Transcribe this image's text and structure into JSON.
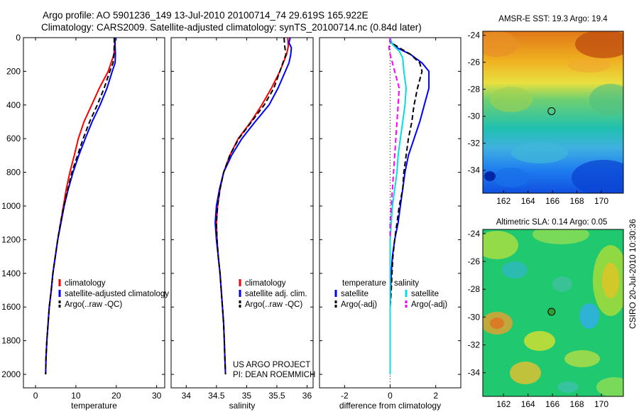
{
  "figure": {
    "title_line1": "Argo profile: AO 5901236_149 13-Jul-2010 20100714_74 29.619S 165.922E",
    "title_line2": "Climatology: CARS2009. Satellite-adjusted climatology: synTS_20100714.nc (0.84d later)",
    "credit_line1": "US ARGO PROJECT",
    "credit_line2": "PI: DEAN ROEMMICH",
    "side_label": "CSIRO 20-Jul-2010 10:30:36"
  },
  "chart_data": [
    {
      "id": "temperature",
      "type": "line",
      "xlabel": "temperature",
      "xlim": [
        -3,
        32
      ],
      "ylim": [
        2080,
        0
      ],
      "xticks": [
        0,
        10,
        20,
        30
      ],
      "yticks": [
        0,
        200,
        400,
        600,
        800,
        1000,
        1200,
        1400,
        1600,
        1800,
        2000
      ],
      "legend": {
        "position": "bottom-right",
        "entries": [
          "climatology",
          "satellite-adjusted climatology",
          "Argo(..raw -QC)"
        ]
      },
      "series": [
        {
          "name": "climatology",
          "color": "#ff0000",
          "style": "solid",
          "points": [
            [
              19.6,
              0
            ],
            [
              19.6,
              50
            ],
            [
              19.4,
              100
            ],
            [
              18.0,
              200
            ],
            [
              15.8,
              300
            ],
            [
              13.9,
              400
            ],
            [
              12.0,
              500
            ],
            [
              10.6,
              600
            ],
            [
              9.6,
              700
            ],
            [
              8.5,
              800
            ],
            [
              7.6,
              900
            ],
            [
              6.9,
              1000
            ],
            [
              6.2,
              1100
            ],
            [
              5.5,
              1200
            ],
            [
              4.9,
              1300
            ],
            [
              4.3,
              1400
            ],
            [
              3.9,
              1500
            ],
            [
              3.4,
              1600
            ],
            [
              3.1,
              1700
            ],
            [
              2.8,
              1800
            ],
            [
              2.6,
              1900
            ],
            [
              2.5,
              2000
            ]
          ]
        },
        {
          "name": "satellite-adjusted climatology",
          "color": "#0000ff",
          "style": "solid",
          "points": [
            [
              19.7,
              0
            ],
            [
              19.7,
              50
            ],
            [
              19.8,
              100
            ],
            [
              19.7,
              150
            ],
            [
              19.0,
              200
            ],
            [
              17.7,
              300
            ],
            [
              16.0,
              400
            ],
            [
              14.0,
              500
            ],
            [
              12.3,
              600
            ],
            [
              10.7,
              700
            ],
            [
              9.3,
              800
            ],
            [
              8.1,
              900
            ],
            [
              7.1,
              1000
            ],
            [
              6.3,
              1100
            ],
            [
              5.5,
              1200
            ],
            [
              4.9,
              1300
            ],
            [
              4.3,
              1400
            ],
            [
              3.9,
              1500
            ],
            [
              3.4,
              1600
            ],
            [
              3.1,
              1700
            ],
            [
              2.8,
              1800
            ],
            [
              2.6,
              1900
            ],
            [
              2.5,
              2000
            ]
          ]
        },
        {
          "name": "Argo(..raw -QC)",
          "color": "#000000",
          "style": "dashed",
          "points": [
            [
              19.5,
              0
            ],
            [
              19.5,
              50
            ],
            [
              19.4,
              100
            ],
            [
              19.2,
              150
            ],
            [
              18.4,
              200
            ],
            [
              17.0,
              300
            ],
            [
              15.3,
              400
            ],
            [
              13.4,
              500
            ],
            [
              11.8,
              600
            ],
            [
              10.4,
              700
            ],
            [
              9.0,
              800
            ],
            [
              8.0,
              900
            ],
            [
              7.0,
              1000
            ],
            [
              6.2,
              1100
            ],
            [
              5.5,
              1200
            ],
            [
              4.9,
              1300
            ],
            [
              4.3,
              1400
            ],
            [
              3.9,
              1500
            ],
            [
              3.4,
              1600
            ],
            [
              3.1,
              1700
            ],
            [
              2.8,
              1800
            ],
            [
              2.6,
              1900
            ],
            [
              2.5,
              2000
            ]
          ]
        }
      ]
    },
    {
      "id": "salinity",
      "type": "line",
      "xlabel": "salinity",
      "xlim": [
        33.75,
        36.1
      ],
      "ylim": [
        2080,
        0
      ],
      "xticks": [
        34,
        34.5,
        35,
        35.5,
        36
      ],
      "legend": {
        "position": "bottom-right",
        "entries": [
          "climatology",
          "satellite adj. clim.",
          "Argo(..raw -QC)"
        ]
      },
      "series": [
        {
          "name": "climatology",
          "color": "#ff0000",
          "style": "solid",
          "points": [
            [
              35.68,
              0
            ],
            [
              35.69,
              50
            ],
            [
              35.66,
              100
            ],
            [
              35.55,
              200
            ],
            [
              35.41,
              300
            ],
            [
              35.25,
              400
            ],
            [
              35.07,
              500
            ],
            [
              34.86,
              600
            ],
            [
              34.72,
              700
            ],
            [
              34.62,
              800
            ],
            [
              34.56,
              900
            ],
            [
              34.52,
              1000
            ],
            [
              34.5,
              1100
            ],
            [
              34.51,
              1200
            ],
            [
              34.53,
              1300
            ],
            [
              34.56,
              1400
            ],
            [
              34.58,
              1500
            ],
            [
              34.6,
              1600
            ],
            [
              34.62,
              1700
            ],
            [
              34.63,
              1800
            ],
            [
              34.64,
              1900
            ],
            [
              34.65,
              2000
            ]
          ]
        },
        {
          "name": "satellite adj. clim.",
          "color": "#0000ff",
          "style": "solid",
          "points": [
            [
              35.72,
              0
            ],
            [
              35.7,
              30
            ],
            [
              35.74,
              60
            ],
            [
              35.73,
              100
            ],
            [
              35.7,
              150
            ],
            [
              35.64,
              200
            ],
            [
              35.52,
              300
            ],
            [
              35.37,
              400
            ],
            [
              35.14,
              500
            ],
            [
              34.92,
              600
            ],
            [
              34.75,
              700
            ],
            [
              34.62,
              800
            ],
            [
              34.55,
              900
            ],
            [
              34.5,
              1000
            ],
            [
              34.48,
              1100
            ],
            [
              34.5,
              1200
            ],
            [
              34.53,
              1300
            ],
            [
              34.56,
              1400
            ],
            [
              34.58,
              1500
            ],
            [
              34.6,
              1600
            ],
            [
              34.62,
              1700
            ],
            [
              34.63,
              1800
            ],
            [
              34.64,
              1900
            ],
            [
              34.65,
              2000
            ]
          ]
        },
        {
          "name": "Argo(..raw -QC)",
          "color": "#000000",
          "style": "dashed",
          "points": [
            [
              35.62,
              0
            ],
            [
              35.63,
              50
            ],
            [
              35.65,
              100
            ],
            [
              35.6,
              150
            ],
            [
              35.55,
              200
            ],
            [
              35.45,
              300
            ],
            [
              35.29,
              400
            ],
            [
              35.08,
              500
            ],
            [
              34.87,
              600
            ],
            [
              34.72,
              700
            ],
            [
              34.62,
              800
            ],
            [
              34.56,
              900
            ],
            [
              34.52,
              1000
            ],
            [
              34.5,
              1100
            ],
            [
              34.51,
              1200
            ],
            [
              34.53,
              1300
            ],
            [
              34.56,
              1400
            ],
            [
              34.58,
              1500
            ],
            [
              34.6,
              1600
            ],
            [
              34.62,
              1700
            ],
            [
              34.63,
              1800
            ],
            [
              34.64,
              1900
            ],
            [
              34.65,
              2000
            ]
          ]
        }
      ]
    },
    {
      "id": "difference",
      "type": "line",
      "xlabel": "difference from climatology",
      "xlim": [
        -3.1,
        3.1
      ],
      "ylim": [
        2080,
        0
      ],
      "xticks": [
        -2,
        0,
        2
      ],
      "legend": {
        "position": "bottom-right",
        "group_titles": [
          "temperature",
          "salinity"
        ],
        "entries": [
          "satellite",
          "Argo(-adj)",
          "satellite",
          "Argo(-adj)"
        ]
      },
      "series": [
        {
          "name": "satellite",
          "group": "temperature",
          "color": "#0000ff",
          "style": "solid",
          "points": [
            [
              0,
              0
            ],
            [
              0.05,
              30
            ],
            [
              0.3,
              60
            ],
            [
              0.9,
              100
            ],
            [
              1.4,
              150
            ],
            [
              1.7,
              200
            ],
            [
              1.7,
              300
            ],
            [
              1.5,
              400
            ],
            [
              1.3,
              500
            ],
            [
              1.05,
              600
            ],
            [
              0.8,
              700
            ],
            [
              0.65,
              800
            ],
            [
              0.55,
              900
            ],
            [
              0.45,
              1000
            ],
            [
              0.35,
              1100
            ],
            [
              0.2,
              1200
            ],
            [
              0.1,
              1300
            ],
            [
              0.05,
              1400
            ],
            [
              0.02,
              1500
            ],
            [
              0,
              1600
            ],
            [
              0,
              1800
            ],
            [
              0,
              2000
            ]
          ]
        },
        {
          "name": "Argo(-adj)",
          "group": "temperature",
          "color": "#000000",
          "style": "dashed",
          "points": [
            [
              0,
              0
            ],
            [
              0.05,
              30
            ],
            [
              0.4,
              60
            ],
            [
              0.9,
              100
            ],
            [
              1.3,
              150
            ],
            [
              1.4,
              200
            ],
            [
              1.2,
              300
            ],
            [
              1.05,
              400
            ],
            [
              0.95,
              500
            ],
            [
              0.8,
              600
            ],
            [
              0.7,
              700
            ],
            [
              0.6,
              800
            ],
            [
              0.55,
              900
            ],
            [
              0.4,
              1000
            ],
            [
              0.3,
              1100
            ],
            [
              0.2,
              1200
            ],
            [
              0.12,
              1300
            ],
            [
              0.08,
              1400
            ],
            [
              0.05,
              1500
            ],
            [
              0,
              1600
            ],
            [
              0,
              1800
            ],
            [
              0,
              2000
            ]
          ]
        },
        {
          "name": "satellite",
          "group": "salinity",
          "color": "#00e0e0",
          "style": "solid",
          "points": [
            [
              0,
              0
            ],
            [
              0.1,
              40
            ],
            [
              0.4,
              80
            ],
            [
              0.55,
              120
            ],
            [
              0.6,
              200
            ],
            [
              0.7,
              300
            ],
            [
              0.65,
              400
            ],
            [
              0.55,
              500
            ],
            [
              0.45,
              600
            ],
            [
              0.35,
              700
            ],
            [
              0.3,
              800
            ],
            [
              0.2,
              900
            ],
            [
              0.1,
              1000
            ],
            [
              0.05,
              1100
            ],
            [
              0,
              1200
            ],
            [
              0,
              1300
            ],
            [
              0,
              1400
            ],
            [
              0,
              1500
            ],
            [
              0,
              1600
            ],
            [
              0,
              1800
            ],
            [
              0,
              2000
            ]
          ]
        },
        {
          "name": "Argo(-adj)",
          "group": "salinity",
          "color": "#ff00ff",
          "style": "dashed",
          "points": [
            [
              0,
              0
            ],
            [
              -0.05,
              60
            ],
            [
              0.0,
              100
            ],
            [
              0.2,
              200
            ],
            [
              0.4,
              300
            ],
            [
              0.35,
              400
            ],
            [
              0.3,
              500
            ],
            [
              0.25,
              600
            ],
            [
              0.2,
              700
            ],
            [
              0.15,
              800
            ],
            [
              0.1,
              900
            ],
            [
              0.05,
              1000
            ],
            [
              0,
              1100
            ],
            [
              0,
              1200
            ]
          ]
        }
      ]
    },
    {
      "id": "sst_map",
      "type": "heatmap",
      "title": "AMSR-E SST: 19.3 Argo: 19.4",
      "xlim": [
        160.3,
        171.8
      ],
      "ylim": [
        -35.7,
        -23.7
      ],
      "xticks": [
        162,
        164,
        166,
        168,
        170
      ],
      "yticks": [
        -24,
        -26,
        -28,
        -30,
        -32,
        -34
      ],
      "marker": {
        "lon": 165.922,
        "lat": -29.619
      }
    },
    {
      "id": "sla_map",
      "type": "heatmap",
      "title": "Altimetric SLA: 0.14 Argo: 0.05",
      "xlim": [
        160.3,
        171.8
      ],
      "ylim": [
        -35.7,
        -23.7
      ],
      "xticks": [
        162,
        164,
        166,
        168,
        170
      ],
      "yticks": [
        -24,
        -26,
        -28,
        -30,
        -32,
        -34
      ],
      "marker": {
        "lon": 165.922,
        "lat": -29.619
      }
    }
  ]
}
